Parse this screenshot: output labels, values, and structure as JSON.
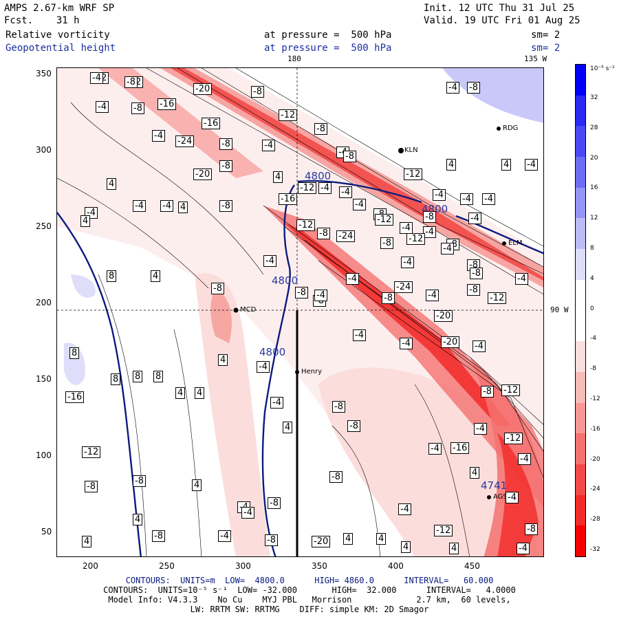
{
  "header": {
    "model": "AMPS 2.67-km WRF SP",
    "fcst": "Fcst.    31 h",
    "init": "Init. 12 UTC Thu 31 Jul 25",
    "valid": "Valid. 19 UTC Fri 01 Aug 25",
    "field1": "Relative vorticity",
    "field2": "Geopotential height",
    "pressure1": "at pressure =  500 hPa",
    "pressure2": "at pressure =  500 hPa",
    "sm1": "sm= 2",
    "sm2": "sm= 2",
    "lon_top": "180",
    "lon_right_top": "135 W",
    "lat_right": "90 W"
  },
  "colorbar": {
    "unit": "10⁻⁵ s⁻¹",
    "labels": [
      "32",
      "28",
      "20",
      "16",
      "12",
      "8",
      "4",
      "0",
      "-4",
      "-8",
      "-12",
      "-16",
      "-20",
      "-24",
      "-28",
      "-32"
    ],
    "colors": [
      "#0000f5",
      "#2a2af3",
      "#4a4af2",
      "#6e6ef4",
      "#9595f6",
      "#bcbcf8",
      "#dedefb",
      "#ffffff",
      "#ffffff",
      "#fbdedc",
      "#f8bcb8",
      "#f69894",
      "#f47270",
      "#f24a48",
      "#f22a28",
      "#f50000"
    ]
  },
  "axes": {
    "x_ticks": [
      "200",
      "250",
      "300",
      "350",
      "400",
      "450"
    ],
    "y_ticks": [
      "350",
      "300",
      "250",
      "200",
      "150",
      "100",
      "50"
    ]
  },
  "stations": [
    {
      "name": "Henry"
    },
    {
      "name": "KLN"
    },
    {
      "name": "RDG"
    },
    {
      "name": "ELM"
    },
    {
      "name": "MCD"
    },
    {
      "name": "AGS"
    }
  ],
  "height_labels": [
    "4800",
    "4800",
    "4800",
    "4800",
    "4741"
  ],
  "vort_labels": [
    "-12",
    "-12",
    "-20",
    "-8",
    "-4",
    "-8",
    "-16",
    "-12",
    "-8",
    "-4",
    "-4",
    "-8",
    "-16",
    "-4",
    "-24",
    "-8",
    "-4",
    "-8",
    "-12",
    "4",
    "4",
    "-4",
    "-8",
    "-20",
    "4",
    "4",
    "-4",
    "-4",
    "-4",
    "-8",
    "-12",
    "-4",
    "-4",
    "-16",
    "-4",
    "-8",
    "-8",
    "-4",
    "-4",
    "-4",
    "-4",
    "-12",
    "-8",
    "-4",
    "-12",
    "-4",
    "-24",
    "-8",
    "-12",
    "-8",
    "-4",
    "-4",
    "-8",
    "-8",
    "-4",
    "-8",
    "-24",
    "-8",
    "-4",
    "-8",
    "-4",
    "-8",
    "-12",
    "4",
    "8",
    "4",
    "4",
    "-4",
    "-20",
    "-8",
    "-4",
    "-4",
    "-4",
    "-4",
    "-20",
    "-8",
    "8",
    "8",
    "8",
    "8",
    "4",
    "4",
    "4",
    "-4",
    "-4",
    "-8",
    "-12",
    "-16",
    "4",
    "-8",
    "-4",
    "-8",
    "-4",
    "-12",
    "-8",
    "-16",
    "4",
    "4",
    "-4",
    "-8",
    "-4",
    "-12",
    "-4",
    "-8",
    "4",
    "4",
    "-8",
    "-20",
    "4",
    "4",
    "4",
    "4",
    "-4",
    "-4",
    "-8",
    "-8",
    "-4",
    "-4",
    "-12",
    "-4",
    "-8"
  ],
  "footer": {
    "line1": "CONTOURS:  UNITS=m  LOW=  4800.0      HIGH= 4860.0      INTERVAL=   60.000",
    "line2": "CONTOURS:  UNITS=10⁻⁵ s⁻¹  LOW= -32.000       HIGH=  32.000      INTERVAL=   4.0000",
    "line3": "Model Info: V4.3.3    No Cu    MYJ PBL   Morrison             2.7 km,  60 levels,",
    "line4": "LW: RRTM SW: RRTMG    DIFF: simple KM: 2D Smagor"
  }
}
